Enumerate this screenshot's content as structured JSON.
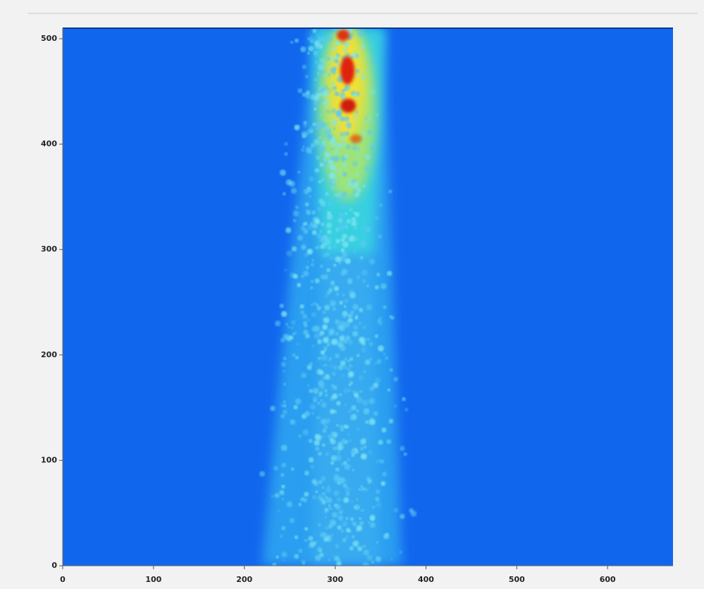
{
  "chart_data": {
    "type": "image",
    "xlim": [
      0,
      672
    ],
    "ylim": [
      0,
      510
    ],
    "xticks": [
      0,
      100,
      200,
      300,
      400,
      500,
      600
    ],
    "yticks": [
      0,
      100,
      200,
      300,
      400,
      500
    ]
  }
}
